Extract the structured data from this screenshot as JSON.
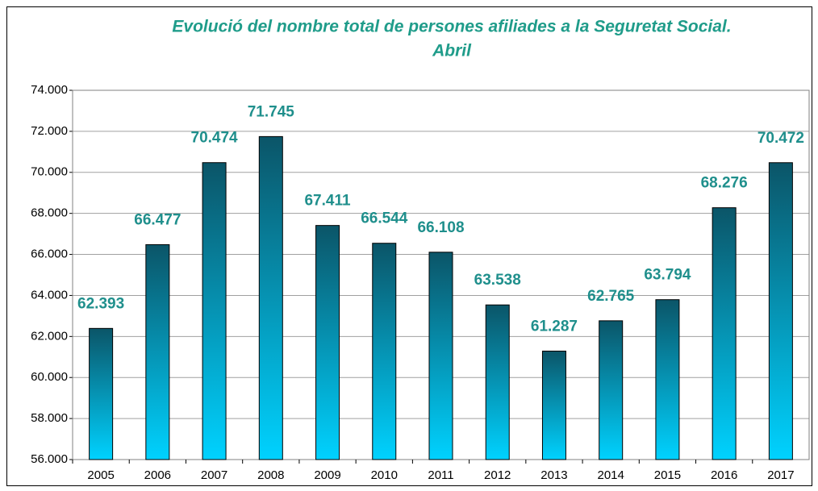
{
  "chart_data": {
    "type": "bar",
    "title": [
      "Evolució del nombre total de persones afiliades a la Seguretat Social.",
      "Abril"
    ],
    "categories": [
      "2005",
      "2006",
      "2007",
      "2008",
      "2009",
      "2010",
      "2011",
      "2012",
      "2013",
      "2014",
      "2015",
      "2016",
      "2017"
    ],
    "values": [
      62393,
      66477,
      70474,
      71745,
      67411,
      66544,
      66108,
      63538,
      61287,
      62765,
      63794,
      68276,
      70472
    ],
    "value_labels": [
      "62.393",
      "66.477",
      "70.474",
      "71.745",
      "67.411",
      "66.544",
      "66.108",
      "63.538",
      "61.287",
      "62.765",
      "63.794",
      "68.276",
      "70.472"
    ],
    "color": [
      "#0b5568",
      "#00d2ff"
    ],
    "ylim": [
      56000,
      74000
    ],
    "yticks": [
      {
        "value": 56000,
        "label": "56.000"
      },
      {
        "value": 58000,
        "label": "58.000"
      },
      {
        "value": 60000,
        "label": "60.000"
      },
      {
        "value": 62000,
        "label": "62.000"
      },
      {
        "value": 64000,
        "label": "64.000"
      },
      {
        "value": 66000,
        "label": "66.000"
      },
      {
        "value": 68000,
        "label": "68.000"
      },
      {
        "value": 70000,
        "label": "70.000"
      },
      {
        "value": 72000,
        "label": "72.000"
      },
      {
        "value": 74000,
        "label": "74.000"
      }
    ],
    "grid": true
  }
}
